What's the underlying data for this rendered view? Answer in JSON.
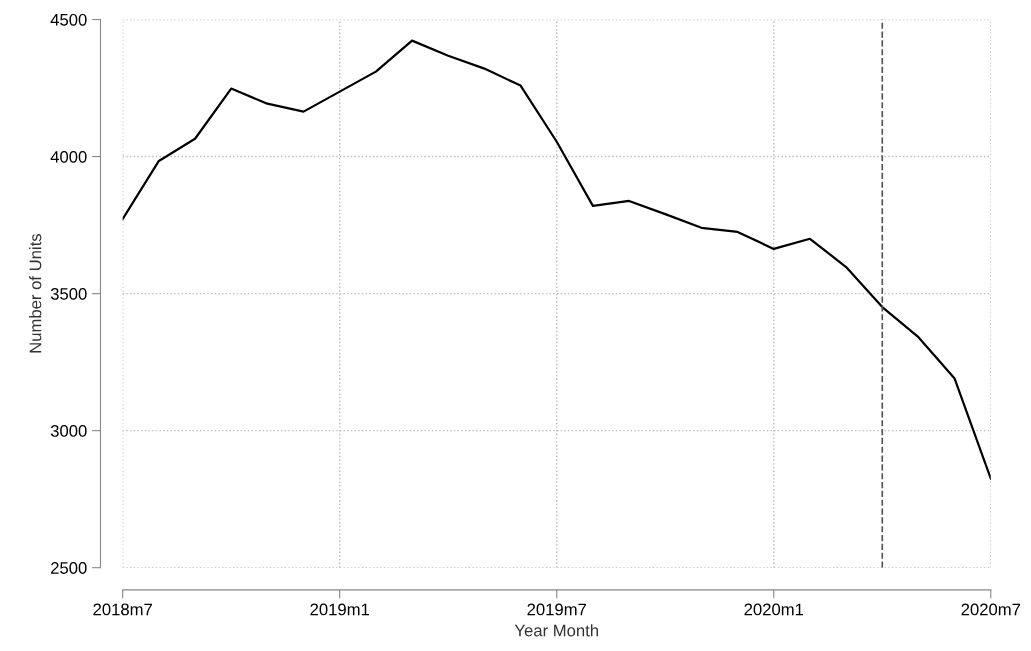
{
  "chart_data": {
    "type": "line",
    "xlabel": "Year Month",
    "ylabel": "Number of Units",
    "x": [
      "2018-07",
      "2018-08",
      "2018-09",
      "2018-10",
      "2018-11",
      "2018-12",
      "2019-01",
      "2019-02",
      "2019-03",
      "2019-04",
      "2019-05",
      "2019-06",
      "2019-07",
      "2019-08",
      "2019-09",
      "2019-10",
      "2019-11",
      "2019-12",
      "2020-01",
      "2020-02",
      "2020-03",
      "2020-04",
      "2020-05",
      "2020-06",
      "2020-07"
    ],
    "series": [
      {
        "color": "#000000",
        "values": [
          3772,
          3984,
          4065,
          4248,
          4193,
          4164,
          4237,
          4310,
          4423,
          4368,
          4321,
          4259,
          4054,
          3820,
          3838,
          3790,
          3740,
          3725,
          3663,
          3700,
          3597,
          3451,
          3341,
          3190,
          2825
        ]
      }
    ],
    "xlim": [
      "2018-07",
      "2020-07"
    ],
    "xticks": [
      {
        "value": "2018-07",
        "label": "2018m7"
      },
      {
        "value": "2019-01",
        "label": "2019m1"
      },
      {
        "value": "2019-07",
        "label": "2019m7"
      },
      {
        "value": "2020-01",
        "label": "2020m1"
      },
      {
        "value": "2020-07",
        "label": "2020m7"
      }
    ],
    "ylim": [
      2500,
      4500
    ],
    "yticks": [
      2500,
      3000,
      3500,
      4000,
      4500
    ],
    "ref_lines": [
      {
        "axis": "x",
        "value": "2020-04",
        "color": "#555555",
        "line_style": "dashed"
      }
    ],
    "grid": true,
    "legend": false,
    "marker": "none",
    "line_style": "solid"
  }
}
